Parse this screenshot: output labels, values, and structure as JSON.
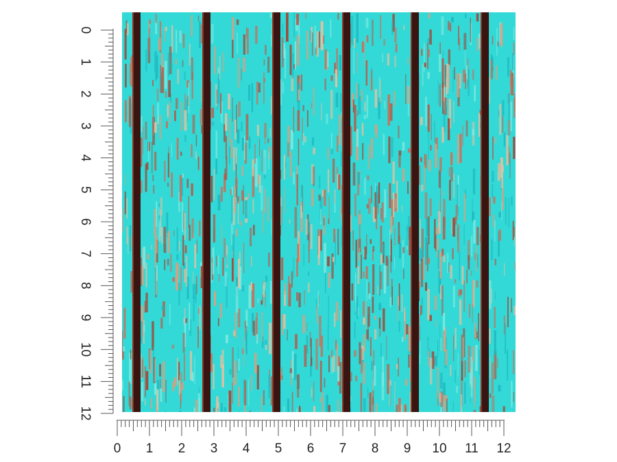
{
  "rulers": {
    "left": {
      "labels": [
        0,
        1,
        2,
        3,
        4,
        5,
        6,
        7,
        8,
        9,
        10,
        11,
        12
      ]
    },
    "bottom": {
      "labels": [
        0,
        1,
        2,
        3,
        4,
        5,
        6,
        7,
        8,
        9,
        10,
        11,
        12
      ]
    }
  }
}
